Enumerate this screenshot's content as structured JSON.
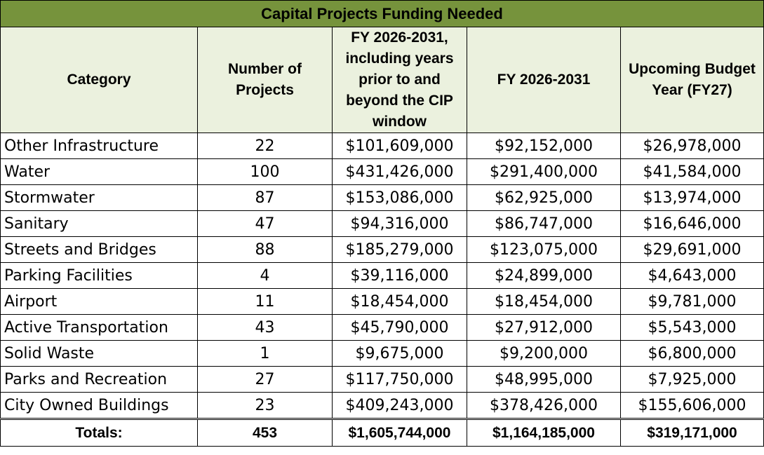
{
  "table": {
    "title": "Capital Projects Funding Needed",
    "headers": [
      "Category",
      "Number of Projects",
      "FY 2026-2031, including years prior to and beyond the CIP window",
      "FY 2026-2031",
      "Upcoming Budget Year (FY27)"
    ],
    "rows": [
      [
        "Other Infrastructure",
        "22",
        "$101,609,000",
        "$92,152,000",
        "$26,978,000"
      ],
      [
        "Water",
        "100",
        "$431,426,000",
        "$291,400,000",
        "$41,584,000"
      ],
      [
        "Stormwater",
        "87",
        "$153,086,000",
        "$62,925,000",
        "$13,974,000"
      ],
      [
        "Sanitary",
        "47",
        "$94,316,000",
        "$86,747,000",
        "$16,646,000"
      ],
      [
        "Streets and Bridges",
        "88",
        "$185,279,000",
        "$123,075,000",
        "$29,691,000"
      ],
      [
        "Parking Facilities",
        "4",
        "$39,116,000",
        "$24,899,000",
        "$4,643,000"
      ],
      [
        "Airport",
        "11",
        "$18,454,000",
        "$18,454,000",
        "$9,781,000"
      ],
      [
        "Active Transportation",
        "43",
        "$45,790,000",
        "$27,912,000",
        "$5,543,000"
      ],
      [
        "Solid Waste",
        "1",
        "$9,675,000",
        "$9,200,000",
        "$6,800,000"
      ],
      [
        "Parks and Recreation",
        "27",
        "$117,750,000",
        "$48,995,000",
        "$7,925,000"
      ],
      [
        "City Owned Buildings",
        "23",
        "$409,243,000",
        "$378,426,000",
        "$155,606,000"
      ]
    ],
    "totals": [
      "Totals:",
      "453",
      "$1,605,744,000",
      "$1,164,185,000",
      "$319,171,000"
    ]
  },
  "colors": {
    "title_background": "#76933c",
    "header_background": "#ebf1de",
    "border": "#000000"
  }
}
